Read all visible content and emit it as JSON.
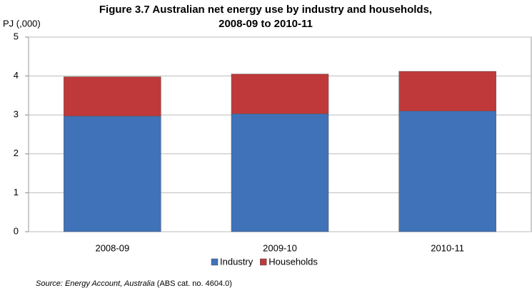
{
  "chart_data": {
    "type": "stacked_bar",
    "title": [
      "Figure 3.7 Australian net energy use by industry and households,",
      "2008-09 to 2010-11"
    ],
    "y_label": "PJ (,000)",
    "categories": [
      "2008-09",
      "2009-10",
      "2010-11"
    ],
    "series": [
      {
        "name": "Industry",
        "color": "#3f72b8",
        "values": [
          2.97,
          3.03,
          3.1
        ]
      },
      {
        "name": "Households",
        "color": "#c0393a",
        "values": [
          1.01,
          1.02,
          1.02
        ]
      }
    ],
    "ylim": [
      0,
      5
    ],
    "yticks": [
      0,
      1,
      2,
      3,
      4,
      5
    ],
    "grid": true,
    "legend": "bottom",
    "source": [
      "Source: Energy Account, Australia",
      "(ABS cat. no. 4604.0)"
    ]
  }
}
